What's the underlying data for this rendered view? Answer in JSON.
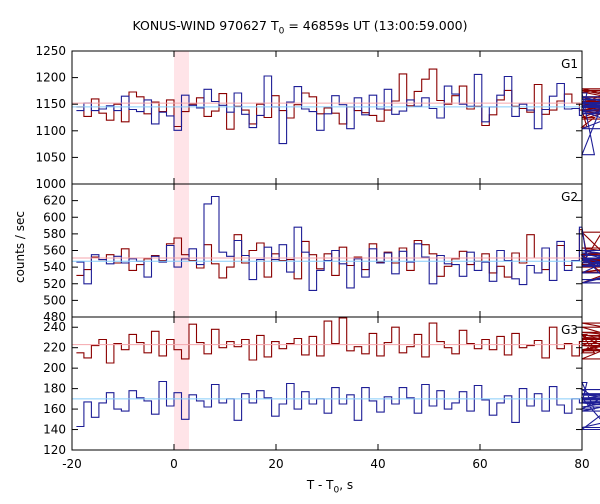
{
  "title": {
    "prefix": "KONUS-WIND 970627 T",
    "sub": "0",
    "suffix": " = 46859s UT (13:00:59.000)"
  },
  "xlabel": {
    "prefix": "T - T",
    "sub": "0",
    "suffix": ", s"
  },
  "ylabel": "counts / sec",
  "colors": {
    "dark_red": "#8b0000",
    "dark_blue": "#1e1e96",
    "bg_pink": "#f4a6ac",
    "bg_light_blue": "#87cefa",
    "highlight": "#ffe4e8"
  },
  "chart_data": [
    {
      "type": "line",
      "label": "G1",
      "xlim": [
        -20,
        80
      ],
      "ylim": [
        1000,
        1250
      ],
      "yticks": [
        1000,
        1050,
        1100,
        1150,
        1200,
        1250
      ],
      "highlight_x": [
        0,
        2.944
      ],
      "bin_width": 1.472,
      "x_start": -19.136,
      "series": [
        {
          "color": "dark_red",
          "values": [
            1145,
            1127,
            1160,
            1133,
            1120,
            1150,
            1117,
            1173,
            1164,
            1132,
            1154,
            1136,
            1158,
            1108,
            1136,
            1150,
            1162,
            1127,
            1137,
            1170,
            1103,
            1146,
            1139,
            1113,
            1150,
            1125,
            1166,
            1138,
            1124,
            1149,
            1171,
            1164,
            1132,
            1143,
            1133,
            1113,
            1145,
            1138,
            1134,
            1129,
            1118,
            1139,
            1156,
            1207,
            1147,
            1174,
            1197,
            1216,
            1157,
            1150,
            1166,
            1184,
            1141,
            1146,
            1110,
            1130,
            1158,
            1176,
            1146,
            1142,
            1135,
            1187,
            1131,
            1139,
            1156,
            1169,
            1152,
            1139,
            1107,
            1125,
            1139,
            1151,
            1179,
            1163,
            1137,
            1122,
            1155,
            1176,
            1148,
            1173,
            1139,
            1164
          ]
        },
        {
          "color": "dark_blue",
          "values": [
            1138,
            1152,
            1138,
            1141,
            1147,
            1138,
            1165,
            1140,
            1136,
            1158,
            1113,
            1135,
            1128,
            1101,
            1167,
            1148,
            1143,
            1178,
            1155,
            1148,
            1135,
            1171,
            1131,
            1106,
            1129,
            1203,
            1145,
            1076,
            1154,
            1183,
            1141,
            1136,
            1101,
            1132,
            1166,
            1149,
            1104,
            1162,
            1130,
            1167,
            1141,
            1178,
            1131,
            1137,
            1158,
            1146,
            1162,
            1142,
            1124,
            1184,
            1169,
            1150,
            1146,
            1206,
            1117,
            1145,
            1167,
            1202,
            1127,
            1150,
            1139,
            1104,
            1140,
            1165,
            1189,
            1141,
            1142,
            1129,
            1171,
            1055,
            1148,
            1144,
            1153,
            1137,
            1104,
            1146,
            1164,
            1132,
            1145,
            1137,
            1159,
            1151
          ]
        },
        {
          "color": "bg_pink",
          "values": [
            1152
          ]
        },
        {
          "color": "bg_light_blue",
          "values": [
            1145
          ]
        }
      ]
    },
    {
      "type": "line",
      "label": "G2",
      "xlim": [
        -20,
        80
      ],
      "ylim": [
        480,
        640
      ],
      "yticks": [
        480,
        500,
        520,
        540,
        560,
        580,
        600,
        620
      ],
      "highlight_x": [
        0,
        2.944
      ],
      "bin_width": 1.472,
      "x_start": -19.136,
      "series": [
        {
          "color": "dark_red",
          "values": [
            530,
            537,
            552,
            549,
            555,
            545,
            562,
            536,
            543,
            550,
            554,
            548,
            568,
            575,
            555,
            548,
            539,
            567,
            544,
            527,
            540,
            579,
            545,
            560,
            569,
            528,
            556,
            548,
            549,
            526,
            571,
            555,
            538,
            556,
            530,
            564,
            542,
            552,
            537,
            568,
            546,
            558,
            545,
            563,
            536,
            572,
            567,
            556,
            529,
            541,
            550,
            559,
            543,
            547,
            556,
            533,
            541,
            528,
            557,
            545,
            579,
            551,
            537,
            551,
            566,
            542,
            548,
            585,
            555,
            543,
            582,
            550,
            521,
            540,
            560,
            549,
            534,
            545,
            555,
            563,
            548,
            540
          ]
        },
        {
          "color": "dark_blue",
          "values": [
            546,
            520,
            555,
            549,
            544,
            553,
            545,
            550,
            547,
            528,
            553,
            546,
            566,
            540,
            550,
            562,
            543,
            616,
            625,
            558,
            553,
            572,
            554,
            525,
            549,
            564,
            549,
            567,
            534,
            588,
            558,
            512,
            536,
            548,
            560,
            544,
            515,
            550,
            528,
            562,
            545,
            557,
            532,
            559,
            546,
            568,
            552,
            520,
            554,
            544,
            543,
            529,
            558,
            536,
            546,
            523,
            560,
            548,
            526,
            519,
            542,
            533,
            563,
            524,
            571,
            536,
            548,
            588,
            548,
            545,
            554,
            521,
            533,
            557,
            542,
            550,
            521,
            541,
            560,
            545,
            551,
            525
          ]
        },
        {
          "color": "bg_pink",
          "values": [
            551
          ]
        },
        {
          "color": "bg_light_blue",
          "values": [
            547
          ]
        }
      ]
    },
    {
      "type": "line",
      "label": "G3",
      "xlim": [
        -20,
        80
      ],
      "ylim": [
        120,
        250
      ],
      "yticks": [
        120,
        140,
        160,
        180,
        200,
        220,
        240
      ],
      "highlight_x": [
        0,
        2.944
      ],
      "bin_width": 1.472,
      "x_start": -19.136,
      "series": [
        {
          "color": "dark_red",
          "values": [
            215,
            210,
            222,
            228,
            205,
            224,
            218,
            233,
            225,
            215,
            236,
            212,
            228,
            218,
            209,
            243,
            225,
            214,
            238,
            220,
            226,
            221,
            228,
            208,
            232,
            211,
            226,
            219,
            224,
            229,
            213,
            231,
            212,
            246,
            224,
            249,
            217,
            221,
            214,
            234,
            212,
            225,
            240,
            215,
            221,
            233,
            211,
            244,
            226,
            220,
            214,
            237,
            224,
            219,
            228,
            218,
            231,
            213,
            234,
            220,
            222,
            227,
            210,
            240,
            219,
            224,
            212,
            226,
            233,
            215,
            232,
            218,
            224,
            209,
            229,
            240,
            222,
            217,
            235,
            228,
            244,
            226
          ]
        },
        {
          "color": "dark_blue",
          "values": [
            143,
            167,
            152,
            166,
            176,
            160,
            158,
            178,
            171,
            168,
            155,
            187,
            163,
            176,
            150,
            174,
            168,
            162,
            184,
            166,
            170,
            149,
            175,
            166,
            178,
            171,
            153,
            165,
            185,
            160,
            177,
            165,
            170,
            156,
            181,
            165,
            174,
            149,
            181,
            168,
            157,
            172,
            165,
            181,
            171,
            156,
            184,
            163,
            178,
            160,
            166,
            177,
            158,
            183,
            169,
            154,
            166,
            173,
            147,
            180,
            163,
            175,
            158,
            182,
            164,
            156,
            170,
            166,
            186,
            160,
            171,
            140,
            166,
            162,
            170,
            179,
            142,
            158,
            174,
            167,
            169,
            175
          ]
        },
        {
          "color": "bg_pink",
          "values": [
            223
          ]
        },
        {
          "color": "bg_light_blue",
          "values": [
            170
          ]
        }
      ]
    }
  ],
  "xaxis": {
    "ticks": [
      -20,
      0,
      20,
      40,
      60,
      80
    ]
  }
}
